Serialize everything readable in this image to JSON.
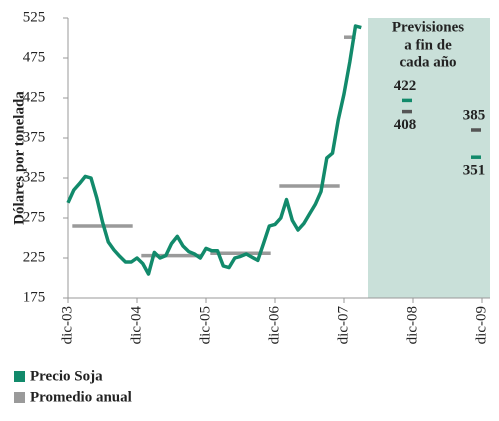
{
  "chart_data": {
    "type": "line",
    "ylabel": "Dólares por tonelada",
    "ylim": [
      175,
      525
    ],
    "yticks": [
      175,
      225,
      275,
      325,
      375,
      425,
      475,
      525
    ],
    "xlim": [
      "2003-12",
      "2009-12"
    ],
    "xticks": [
      {
        "value": "2003-12",
        "label": "dic-03"
      },
      {
        "value": "2004-12",
        "label": "dic-04"
      },
      {
        "value": "2005-12",
        "label": "dic-05"
      },
      {
        "value": "2006-12",
        "label": "dic-06"
      },
      {
        "value": "2007-12",
        "label": "dic-07"
      },
      {
        "value": "2008-12",
        "label": "dic-08"
      },
      {
        "value": "2009-12",
        "label": "dic-09"
      }
    ],
    "series": [
      {
        "name": "Precio Soja",
        "color": "#128a6b",
        "x": [
          "2003-12",
          "2004-01",
          "2004-02",
          "2004-03",
          "2004-04",
          "2004-05",
          "2004-06",
          "2004-07",
          "2004-08",
          "2004-09",
          "2004-10",
          "2004-11",
          "2004-12",
          "2005-01",
          "2005-02",
          "2005-03",
          "2005-04",
          "2005-05",
          "2005-06",
          "2005-07",
          "2005-08",
          "2005-09",
          "2005-10",
          "2005-11",
          "2005-12",
          "2006-01",
          "2006-02",
          "2006-03",
          "2006-04",
          "2006-05",
          "2006-06",
          "2006-07",
          "2006-08",
          "2006-09",
          "2006-10",
          "2006-11",
          "2006-12",
          "2007-01",
          "2007-02",
          "2007-03",
          "2007-04",
          "2007-05",
          "2007-06",
          "2007-07",
          "2007-08",
          "2007-09",
          "2007-10",
          "2007-11",
          "2007-12",
          "2008-01",
          "2008-02",
          "2008-03"
        ],
        "values": [
          294,
          310,
          318,
          327,
          325,
          300,
          270,
          245,
          235,
          227,
          220,
          220,
          225,
          218,
          205,
          232,
          225,
          228,
          243,
          252,
          240,
          233,
          230,
          225,
          237,
          234,
          234,
          215,
          213,
          225,
          227,
          230,
          226,
          222,
          243,
          265,
          267,
          275,
          298,
          272,
          260,
          268,
          280,
          292,
          308,
          350,
          356,
          398,
          430,
          470,
          515,
          513
        ]
      },
      {
        "name": "Promedio anual",
        "color": "#9a9a9a",
        "x": [
          "2004-06",
          "2005-06",
          "2006-06",
          "2007-06",
          "2008-01"
        ],
        "values": [
          265,
          228,
          231,
          315,
          501
        ]
      }
    ],
    "forecast": {
      "title": [
        "Previsiones",
        "a fin de",
        "cada año"
      ],
      "x": [
        "2008-12",
        "2009-12"
      ],
      "price": [
        422,
        351
      ],
      "average": [
        408,
        385
      ]
    }
  }
}
